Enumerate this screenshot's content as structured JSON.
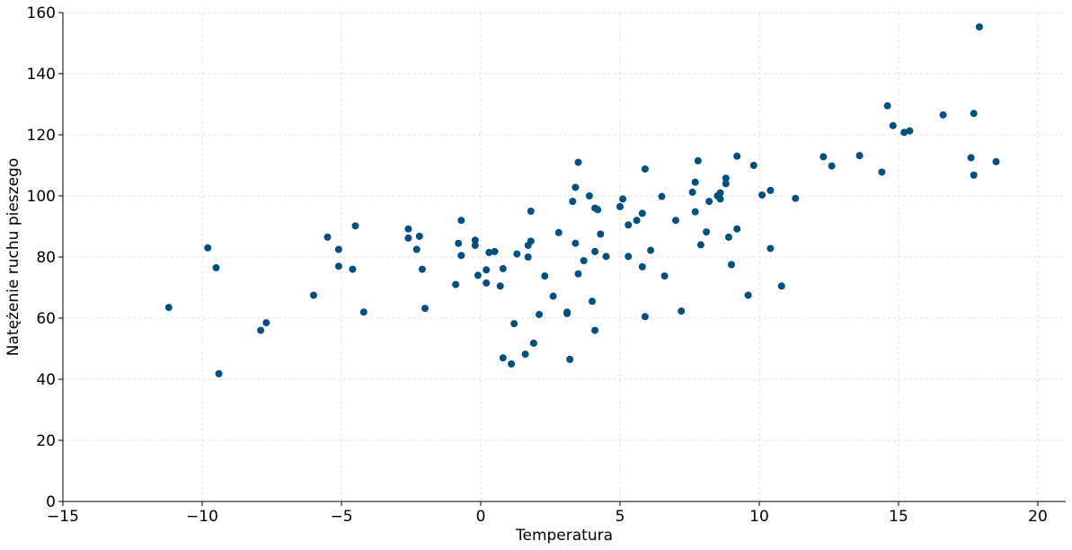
{
  "chart_data": {
    "type": "scatter",
    "title": "",
    "xlabel": "Temperatura",
    "ylabel": "Natężenie ruchu pieszego",
    "xlim": [
      -15,
      21
    ],
    "ylim": [
      0,
      160
    ],
    "xticks": [
      -15,
      -10,
      -5,
      0,
      5,
      10,
      15,
      20
    ],
    "yticks": [
      0,
      20,
      40,
      60,
      80,
      100,
      120,
      140,
      160
    ],
    "xtick_labels": [
      "−15",
      "−10",
      "−5",
      "0",
      "5",
      "10",
      "15",
      "20"
    ],
    "ytick_labels": [
      "0",
      "20",
      "40",
      "60",
      "80",
      "100",
      "120",
      "140",
      "160"
    ],
    "grid": true,
    "marker_color": "#00507f",
    "points": [
      {
        "x": -11.2,
        "y": 63.5
      },
      {
        "x": -9.8,
        "y": 83.0
      },
      {
        "x": -9.5,
        "y": 76.5
      },
      {
        "x": -9.4,
        "y": 41.8
      },
      {
        "x": -7.9,
        "y": 56.0
      },
      {
        "x": -7.7,
        "y": 58.5
      },
      {
        "x": -6.0,
        "y": 67.5
      },
      {
        "x": -5.5,
        "y": 86.5
      },
      {
        "x": -5.1,
        "y": 77.0
      },
      {
        "x": -5.1,
        "y": 82.5
      },
      {
        "x": -4.6,
        "y": 76.0
      },
      {
        "x": -4.5,
        "y": 90.2
      },
      {
        "x": -4.2,
        "y": 62.0
      },
      {
        "x": -2.6,
        "y": 89.2
      },
      {
        "x": -2.6,
        "y": 86.2
      },
      {
        "x": -2.3,
        "y": 82.5
      },
      {
        "x": -2.2,
        "y": 86.8
      },
      {
        "x": -2.1,
        "y": 76.0
      },
      {
        "x": -2.0,
        "y": 63.2
      },
      {
        "x": -0.9,
        "y": 71.0
      },
      {
        "x": -0.8,
        "y": 84.5
      },
      {
        "x": -0.7,
        "y": 92.0
      },
      {
        "x": -0.7,
        "y": 80.5
      },
      {
        "x": -0.2,
        "y": 85.5
      },
      {
        "x": -0.2,
        "y": 83.8
      },
      {
        "x": -0.1,
        "y": 74.0
      },
      {
        "x": 0.2,
        "y": 71.5
      },
      {
        "x": 0.2,
        "y": 75.8
      },
      {
        "x": 0.3,
        "y": 81.5
      },
      {
        "x": 0.5,
        "y": 81.8
      },
      {
        "x": 0.7,
        "y": 70.5
      },
      {
        "x": 0.8,
        "y": 47.0
      },
      {
        "x": 0.8,
        "y": 76.2
      },
      {
        "x": 1.1,
        "y": 45.0
      },
      {
        "x": 1.2,
        "y": 58.2
      },
      {
        "x": 1.3,
        "y": 81.0
      },
      {
        "x": 1.6,
        "y": 48.2
      },
      {
        "x": 1.7,
        "y": 80.0
      },
      {
        "x": 1.7,
        "y": 83.8
      },
      {
        "x": 1.8,
        "y": 85.2
      },
      {
        "x": 1.8,
        "y": 95.0
      },
      {
        "x": 1.9,
        "y": 51.8
      },
      {
        "x": 2.1,
        "y": 61.2
      },
      {
        "x": 2.3,
        "y": 73.8
      },
      {
        "x": 2.6,
        "y": 67.2
      },
      {
        "x": 2.8,
        "y": 88.0
      },
      {
        "x": 3.1,
        "y": 62.0
      },
      {
        "x": 3.1,
        "y": 61.5
      },
      {
        "x": 3.2,
        "y": 46.5
      },
      {
        "x": 3.3,
        "y": 98.2
      },
      {
        "x": 3.4,
        "y": 84.5
      },
      {
        "x": 3.4,
        "y": 102.8
      },
      {
        "x": 3.5,
        "y": 111.0
      },
      {
        "x": 3.5,
        "y": 74.5
      },
      {
        "x": 3.7,
        "y": 78.8
      },
      {
        "x": 3.9,
        "y": 100.0
      },
      {
        "x": 4.0,
        "y": 65.5
      },
      {
        "x": 4.1,
        "y": 81.8
      },
      {
        "x": 4.1,
        "y": 96.0
      },
      {
        "x": 4.1,
        "y": 56.0
      },
      {
        "x": 4.2,
        "y": 95.5
      },
      {
        "x": 4.3,
        "y": 87.5
      },
      {
        "x": 4.5,
        "y": 80.2
      },
      {
        "x": 5.0,
        "y": 96.5
      },
      {
        "x": 5.1,
        "y": 99.0
      },
      {
        "x": 5.3,
        "y": 90.5
      },
      {
        "x": 5.3,
        "y": 80.2
      },
      {
        "x": 5.6,
        "y": 92.0
      },
      {
        "x": 5.8,
        "y": 94.3
      },
      {
        "x": 5.8,
        "y": 76.8
      },
      {
        "x": 5.9,
        "y": 60.5
      },
      {
        "x": 5.9,
        "y": 108.8
      },
      {
        "x": 6.1,
        "y": 82.2
      },
      {
        "x": 6.5,
        "y": 99.8
      },
      {
        "x": 6.6,
        "y": 73.8
      },
      {
        "x": 7.0,
        "y": 92.0
      },
      {
        "x": 7.2,
        "y": 62.3
      },
      {
        "x": 7.6,
        "y": 101.2
      },
      {
        "x": 7.7,
        "y": 104.5
      },
      {
        "x": 7.7,
        "y": 94.8
      },
      {
        "x": 7.8,
        "y": 111.5
      },
      {
        "x": 7.9,
        "y": 84.0
      },
      {
        "x": 8.1,
        "y": 88.2
      },
      {
        "x": 8.2,
        "y": 98.2
      },
      {
        "x": 8.5,
        "y": 100.0
      },
      {
        "x": 8.6,
        "y": 101.0
      },
      {
        "x": 8.6,
        "y": 99.0
      },
      {
        "x": 8.8,
        "y": 104.0
      },
      {
        "x": 8.8,
        "y": 105.8
      },
      {
        "x": 8.9,
        "y": 86.5
      },
      {
        "x": 9.0,
        "y": 77.5
      },
      {
        "x": 9.2,
        "y": 113.0
      },
      {
        "x": 9.2,
        "y": 89.2
      },
      {
        "x": 9.6,
        "y": 67.5
      },
      {
        "x": 9.8,
        "y": 110.0
      },
      {
        "x": 10.1,
        "y": 100.3
      },
      {
        "x": 10.4,
        "y": 82.8
      },
      {
        "x": 10.4,
        "y": 101.8
      },
      {
        "x": 10.8,
        "y": 70.5
      },
      {
        "x": 11.3,
        "y": 99.2
      },
      {
        "x": 12.3,
        "y": 112.8
      },
      {
        "x": 12.6,
        "y": 109.8
      },
      {
        "x": 13.6,
        "y": 113.2
      },
      {
        "x": 14.4,
        "y": 107.8
      },
      {
        "x": 14.6,
        "y": 129.5
      },
      {
        "x": 14.8,
        "y": 123.0
      },
      {
        "x": 15.2,
        "y": 120.8
      },
      {
        "x": 15.4,
        "y": 121.3
      },
      {
        "x": 16.6,
        "y": 126.5
      },
      {
        "x": 17.6,
        "y": 112.5
      },
      {
        "x": 17.7,
        "y": 127.0
      },
      {
        "x": 17.7,
        "y": 106.8
      },
      {
        "x": 17.9,
        "y": 155.3
      },
      {
        "x": 18.5,
        "y": 111.2
      }
    ]
  }
}
